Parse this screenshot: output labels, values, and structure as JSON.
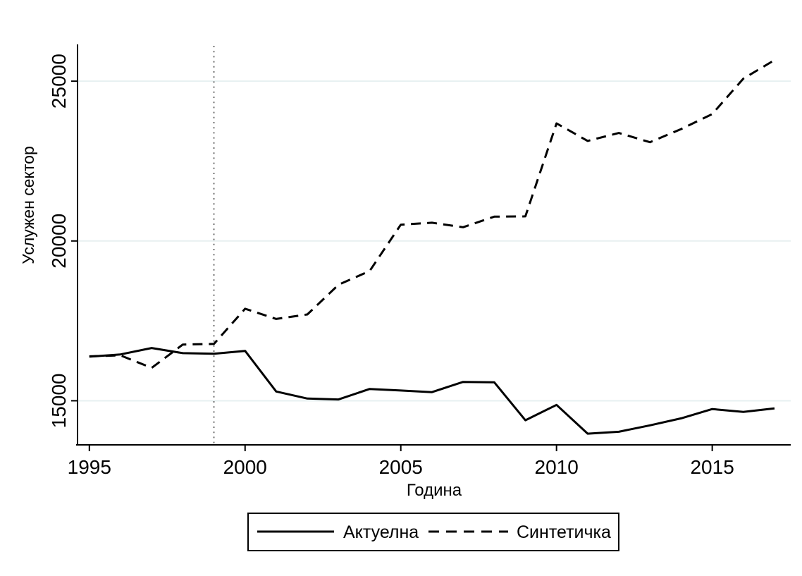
{
  "figure": {
    "background": "#ffffff"
  },
  "chart_data": {
    "type": "line",
    "title": "",
    "xlabel": "Година",
    "ylabel": "Услужен сектор",
    "x": [
      1995,
      1996,
      1997,
      1998,
      1999,
      2000,
      2001,
      2002,
      2003,
      2004,
      2005,
      2006,
      2007,
      2008,
      2009,
      2010,
      2011,
      2012,
      2013,
      2014,
      2015,
      2016,
      2017
    ],
    "series": [
      {
        "name": "Актуелна",
        "style": "solid",
        "color": "#000000",
        "values": [
          16380,
          16450,
          16650,
          16490,
          16470,
          16560,
          15290,
          15070,
          15040,
          15370,
          15320,
          15270,
          15590,
          15580,
          14390,
          14870,
          13970,
          14030,
          14230,
          14450,
          14740,
          14650,
          14760
        ]
      },
      {
        "name": "Синтетичка",
        "style": "dashed",
        "color": "#000000",
        "values": [
          16390,
          16420,
          16030,
          16760,
          16780,
          17880,
          17560,
          17700,
          18630,
          19060,
          20510,
          20570,
          20430,
          20760,
          20770,
          23680,
          23130,
          23380,
          23090,
          23500,
          23970,
          25080,
          25660
        ]
      }
    ],
    "xticks": [
      1995,
      2000,
      2005,
      2010,
      2015
    ],
    "yticks": [
      15000,
      20000,
      25000
    ],
    "xlim": [
      1994.62,
      2017.52
    ],
    "ylim": [
      13620,
      26150
    ],
    "grid": "horizontal",
    "gridline_color": "#e7f0f1",
    "axis_color": "#000000",
    "treatment_line": {
      "x": 1999,
      "style": "dotted",
      "color": "#4d4d4d"
    },
    "legend_position": "bottom-center"
  }
}
